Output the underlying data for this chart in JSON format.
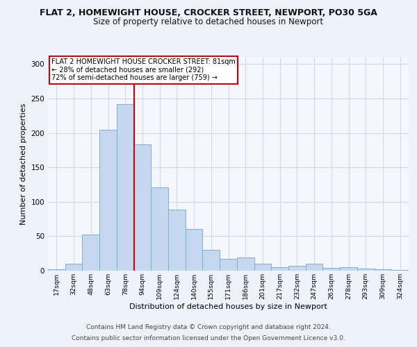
{
  "title1": "FLAT 2, HOMEWIGHT HOUSE, CROCKER STREET, NEWPORT, PO30 5GA",
  "title2": "Size of property relative to detached houses in Newport",
  "xlabel": "Distribution of detached houses by size in Newport",
  "ylabel": "Number of detached properties",
  "bar_labels": [
    "17sqm",
    "32sqm",
    "48sqm",
    "63sqm",
    "78sqm",
    "94sqm",
    "109sqm",
    "124sqm",
    "140sqm",
    "155sqm",
    "171sqm",
    "186sqm",
    "201sqm",
    "217sqm",
    "232sqm",
    "247sqm",
    "263sqm",
    "278sqm",
    "293sqm",
    "309sqm",
    "324sqm"
  ],
  "bar_values": [
    2,
    10,
    52,
    205,
    242,
    183,
    121,
    89,
    60,
    30,
    17,
    19,
    10,
    5,
    7,
    10,
    4,
    5,
    3,
    2,
    1
  ],
  "bar_color": "#c5d8f0",
  "bar_edge_color": "#7bafd4",
  "vline_x": 4.5,
  "vline_color": "#cc0000",
  "annotation_text": "FLAT 2 HOMEWIGHT HOUSE CROCKER STREET: 81sqm\n← 28% of detached houses are smaller (292)\n72% of semi-detached houses are larger (759) →",
  "annotation_box_color": "white",
  "annotation_box_edge": "#cc0000",
  "ylim": [
    0,
    310
  ],
  "yticks": [
    0,
    50,
    100,
    150,
    200,
    250,
    300
  ],
  "footer1": "Contains HM Land Registry data © Crown copyright and database right 2024.",
  "footer2": "Contains public sector information licensed under the Open Government Licence v3.0.",
  "bg_color": "#eef2fb",
  "plot_bg_color": "#f5f7fd",
  "grid_color": "#d0d8ee",
  "title1_fontsize": 9,
  "title2_fontsize": 8.5,
  "xlabel_fontsize": 8,
  "ylabel_fontsize": 8,
  "footer_fontsize": 6.5
}
